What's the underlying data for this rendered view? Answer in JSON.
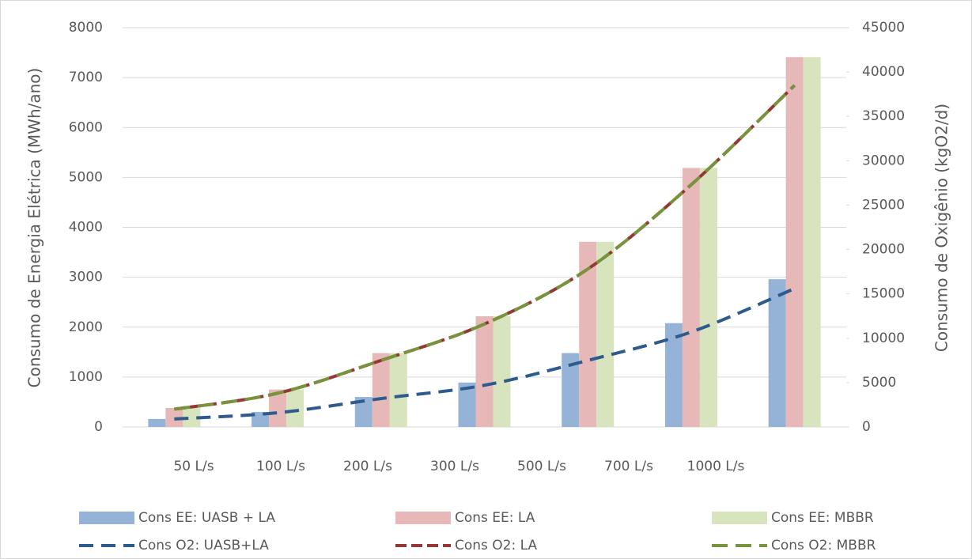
{
  "chart_data": {
    "type": "bar_line",
    "categories": [
      "50 L/s",
      "100 L/s",
      "200 L/s",
      "300 L/s",
      "500 L/s",
      "700 L/s",
      "1000 L/s"
    ],
    "y_label": "Consumo de Energia Elétrica (MWh/ano)",
    "y2_label": "Consumo de Oxigênio (kgO2/d)",
    "ylim": [
      0,
      8000
    ],
    "yticks": [
      0,
      1000,
      2000,
      3000,
      4000,
      5000,
      6000,
      7000,
      8000
    ],
    "y2lim": [
      0,
      45000
    ],
    "y2ticks": [
      0,
      5000,
      10000,
      15000,
      20000,
      25000,
      30000,
      35000,
      40000,
      45000
    ],
    "grid": true,
    "series": [
      {
        "name": "Cons EE: UASB + LA",
        "kind": "bar",
        "color": "#95b3d7",
        "values": [
          160,
          300,
          600,
          890,
          1480,
          2080,
          2960
        ]
      },
      {
        "name": "Cons EE: LA",
        "kind": "bar",
        "color": "#e6b9b8",
        "values": [
          380,
          750,
          1480,
          2220,
          3710,
          5190,
          7410
        ]
      },
      {
        "name": "Cons EE: MBBR",
        "kind": "bar",
        "color": "#d7e4bd",
        "values": [
          380,
          750,
          1480,
          2220,
          3710,
          5190,
          7410
        ]
      },
      {
        "name": "Cons O2: UASB+LA",
        "kind": "line",
        "axis": "y2",
        "color": "#2e5b8e",
        "values": [
          900,
          1600,
          3200,
          4700,
          7500,
          10700,
          15600
        ]
      },
      {
        "name": "Cons O2: LA",
        "kind": "line",
        "axis": "y2",
        "color": "#953735",
        "values": [
          2000,
          3800,
          7500,
          11600,
          17800,
          27300,
          38500
        ]
      },
      {
        "name": "Cons O2: MBBR",
        "kind": "line",
        "axis": "y2",
        "color": "#77933c",
        "values": [
          2000,
          3800,
          7500,
          11600,
          17800,
          27300,
          38500
        ]
      }
    ]
  }
}
